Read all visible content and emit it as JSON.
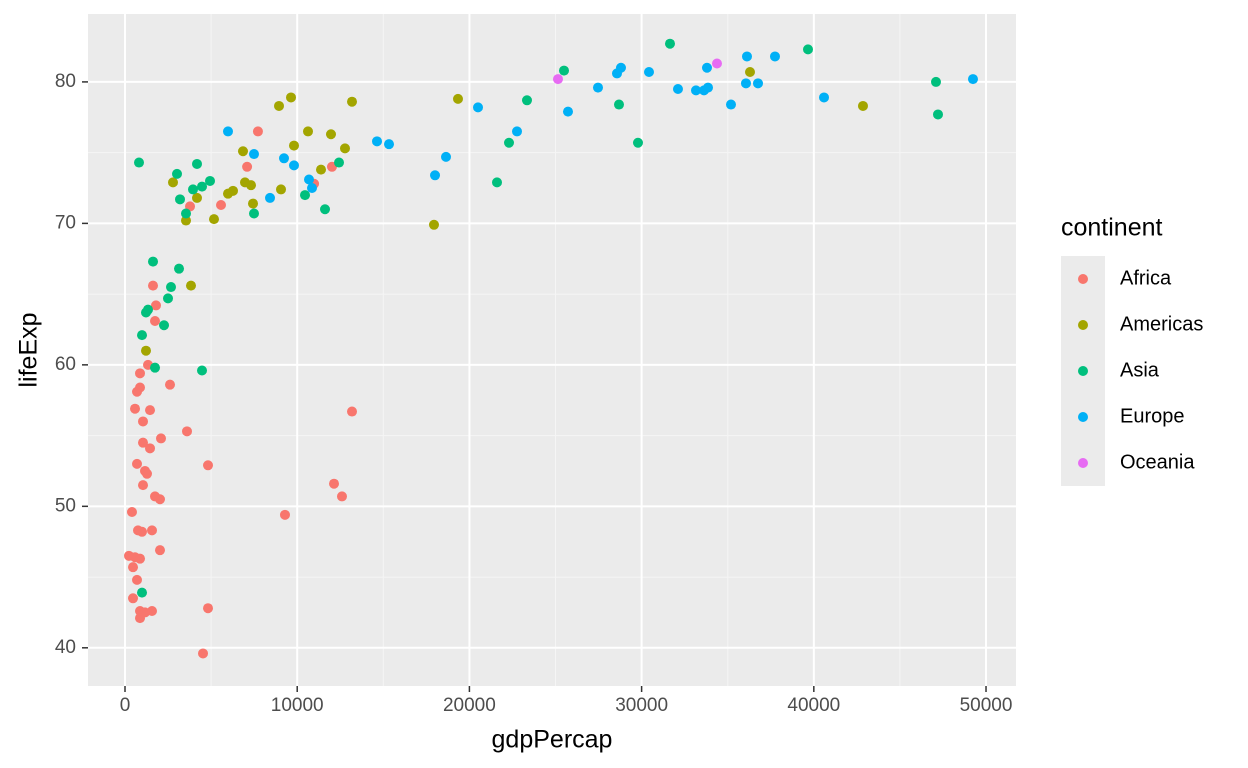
{
  "chart_data": {
    "type": "scatter",
    "x_label": "gdpPercap",
    "y_label": "lifeExp",
    "xlim": [
      -2149,
      51741
    ],
    "ylim": [
      37.3,
      84.8
    ],
    "xticks": [
      0,
      10000,
      20000,
      30000,
      40000,
      50000
    ],
    "yticks": [
      40,
      50,
      60,
      70,
      80
    ],
    "grid": true,
    "legend_title": "continent",
    "legend_position": "right",
    "series": [
      {
        "name": "Africa",
        "color": "#F8766D",
        "x": [
          7720,
          7090,
          12020,
          10980,
          3775,
          5575,
          1626,
          1800,
          1742,
          1336,
          871,
          871,
          2613,
          697,
          1452,
          581,
          1045,
          13182,
          3600,
          2090,
          1045,
          1452,
          697,
          4820,
          1161,
          1277,
          1045,
          12137,
          12600,
          1742,
          2032,
          9290,
          406,
          1568,
          755,
          987,
          232,
          581,
          871,
          2032,
          465,
          697,
          465,
          871,
          1161,
          1568,
          871,
          4820,
          4530
        ],
        "values": [
          76.5,
          74.0,
          74.0,
          72.8,
          71.2,
          71.3,
          65.6,
          64.2,
          63.1,
          60.0,
          59.4,
          58.4,
          58.6,
          58.1,
          56.8,
          56.9,
          56.0,
          56.7,
          55.3,
          54.8,
          54.5,
          54.1,
          53.0,
          52.9,
          52.5,
          52.3,
          51.5,
          51.6,
          50.7,
          50.7,
          50.5,
          49.4,
          49.6,
          48.3,
          48.3,
          48.2,
          46.5,
          46.4,
          46.3,
          46.9,
          45.7,
          44.8,
          43.5,
          42.6,
          42.5,
          42.6,
          42.1,
          42.8,
          39.6
        ]
      },
      {
        "name": "Americas",
        "color": "#A3A500",
        "x": [
          36294,
          42855,
          19337,
          13182,
          9640,
          8943,
          10627,
          11962,
          9814,
          12775,
          6852,
          11382,
          2787,
          6968,
          7317,
          6271,
          5981,
          4181,
          7433,
          3542,
          5168,
          17943,
          3832,
          1219,
          9059
        ],
        "values": [
          80.7,
          78.3,
          78.8,
          78.6,
          78.9,
          78.3,
          76.5,
          76.3,
          75.5,
          75.3,
          75.1,
          73.8,
          72.9,
          72.9,
          72.7,
          72.3,
          72.1,
          71.8,
          71.4,
          70.2,
          70.3,
          69.9,
          65.6,
          61.0,
          72.4
        ]
      },
      {
        "name": "Asia",
        "color": "#00BF7D",
        "x": [
          31648,
          39662,
          25493,
          47095,
          47211,
          28686,
          23344,
          29790,
          22299,
          21602,
          813,
          4181,
          3020,
          3949,
          4472,
          4936,
          3194,
          3542,
          7491,
          10453,
          11614,
          12427,
          1626,
          3136,
          2671,
          2497,
          1336,
          1219,
          2265,
          987,
          1742,
          4472,
          987
        ],
        "values": [
          82.7,
          82.3,
          80.8,
          80.0,
          77.7,
          78.4,
          78.7,
          75.7,
          75.7,
          72.9,
          74.3,
          74.2,
          73.5,
          72.4,
          72.6,
          73.0,
          71.7,
          70.7,
          70.7,
          72.0,
          71.0,
          74.3,
          67.3,
          66.8,
          65.5,
          64.7,
          63.9,
          63.7,
          62.8,
          62.1,
          59.8,
          59.6,
          43.9
        ]
      },
      {
        "name": "Europe",
        "color": "#00B0F6",
        "x": [
          49243,
          40592,
          37745,
          36119,
          36758,
          36061,
          35190,
          33855,
          33158,
          33622,
          32112,
          30429,
          28802,
          28570,
          27467,
          25725,
          33797,
          20499,
          22764,
          18641,
          18003,
          14634,
          15331,
          5981,
          7491,
          9233,
          9814,
          8420,
          10685,
          10859
        ],
        "values": [
          80.2,
          78.9,
          81.8,
          81.8,
          79.9,
          79.9,
          78.4,
          79.6,
          79.4,
          79.4,
          79.5,
          80.7,
          81.0,
          80.6,
          79.6,
          77.9,
          81.0,
          78.2,
          76.5,
          74.7,
          73.4,
          75.8,
          75.6,
          76.5,
          74.9,
          74.6,
          74.1,
          71.8,
          73.1,
          72.5
        ]
      },
      {
        "name": "Oceania",
        "color": "#E76BF3",
        "x": [
          34377,
          25144
        ],
        "values": [
          81.3,
          80.2
        ]
      }
    ]
  }
}
